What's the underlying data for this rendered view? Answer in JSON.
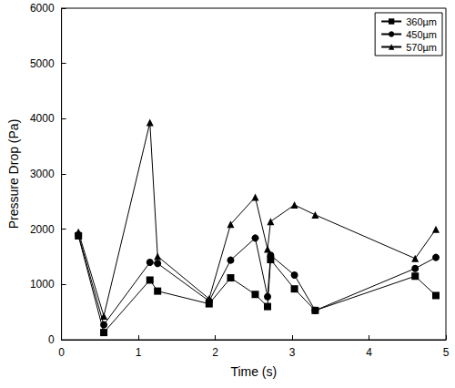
{
  "chart_data": {
    "type": "line",
    "x_label": "Time (s)",
    "y_label": "Pressure Drop (Pa)",
    "xlim": [
      0,
      5
    ],
    "xticks": [
      0,
      1,
      2,
      3,
      4,
      5
    ],
    "ylim": [
      0,
      6000
    ],
    "yticks": [
      0,
      1000,
      2000,
      3000,
      4000,
      5000,
      6000
    ],
    "grid": false,
    "legend": "upper right",
    "series": [
      {
        "name": "360µm",
        "color": "#000000",
        "marker": "square",
        "x": [
          0.22,
          0.55,
          1.15,
          1.25,
          1.92,
          2.2,
          2.52,
          2.68,
          2.72,
          3.03,
          3.3,
          4.6,
          4.87
        ],
        "values": [
          1880,
          130,
          1080,
          880,
          650,
          1120,
          820,
          600,
          1450,
          920,
          530,
          1150,
          800
        ]
      },
      {
        "name": "450µm",
        "color": "#000000",
        "marker": "circle",
        "x": [
          0.22,
          0.55,
          1.15,
          1.25,
          1.92,
          2.2,
          2.52,
          2.68,
          2.72,
          3.03,
          3.3,
          4.6,
          4.87
        ],
        "values": [
          1900,
          270,
          1400,
          1380,
          700,
          1440,
          1840,
          780,
          1530,
          1170,
          530,
          1290,
          1490
        ]
      },
      {
        "name": "570µm",
        "color": "#000000",
        "marker": "triangle",
        "x": [
          0.22,
          0.55,
          1.15,
          1.25,
          1.92,
          2.2,
          2.52,
          2.68,
          2.72,
          3.03,
          3.3,
          4.6,
          4.87
        ],
        "values": [
          1950,
          430,
          3930,
          1510,
          740,
          2090,
          2580,
          1640,
          2140,
          2440,
          2260,
          1470,
          2000
        ]
      }
    ]
  }
}
